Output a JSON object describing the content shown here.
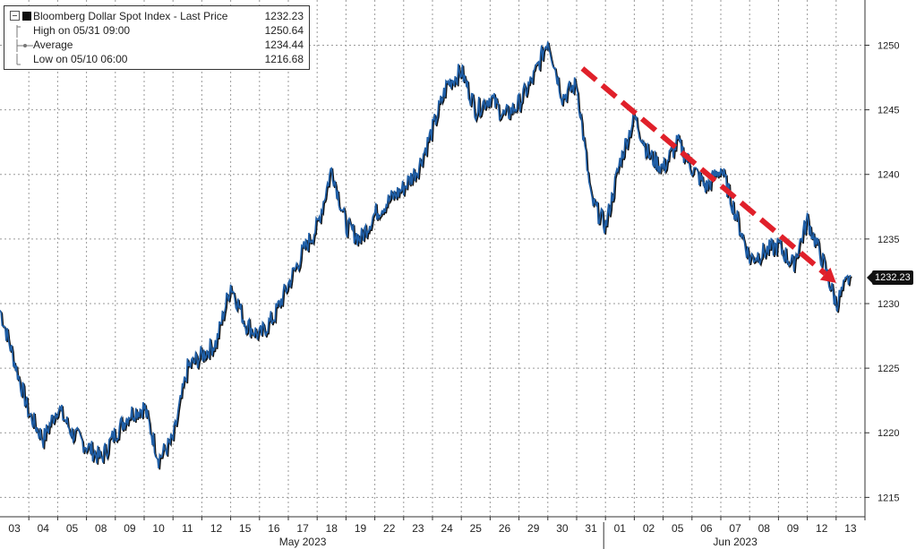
{
  "chart_data": {
    "type": "line",
    "legend": {
      "title": "Bloomberg Dollar Spot Index - Last Price",
      "last": "1232.23",
      "rows": [
        {
          "label": "High on 05/31 09:00",
          "value": "1250.64"
        },
        {
          "label": "Average",
          "value": "1234.44"
        },
        {
          "label": "Low on 05/10 06:00",
          "value": "1216.68"
        }
      ],
      "placement": "top-left"
    },
    "last_price_label": "1232.23",
    "ylim": [
      1213.5,
      1253.5
    ],
    "yticks": [
      1215,
      1220,
      1225,
      1230,
      1235,
      1240,
      1245,
      1250
    ],
    "x_dates": [
      "03",
      "04",
      "05",
      "08",
      "09",
      "10",
      "11",
      "12",
      "15",
      "16",
      "17",
      "18",
      "19",
      "22",
      "23",
      "24",
      "25",
      "26",
      "29",
      "30",
      "31",
      "01",
      "02",
      "05",
      "06",
      "07",
      "08",
      "09",
      "12",
      "13"
    ],
    "months": [
      {
        "label": "May 2023",
        "start": 0,
        "end": 20
      },
      {
        "label": "Jun 2023",
        "start": 21,
        "end": 29
      }
    ],
    "grid": true,
    "series": [
      {
        "color": "#1f5fa8",
        "x": [
          0,
          0.5,
          1,
          1.5,
          2,
          2.5,
          3,
          3.5,
          4,
          4.5,
          5,
          5.5,
          6,
          6.5,
          7,
          7.5,
          8,
          8.5,
          9,
          9.5,
          10,
          10.5,
          11,
          11.5,
          12,
          12.5,
          13,
          13.5,
          14,
          14.5,
          15,
          15.5,
          16,
          16.5,
          17,
          17.5,
          18,
          18.5,
          19,
          19.5,
          20,
          20.5,
          21,
          21.5,
          22,
          22.5,
          23,
          23.5,
          24,
          24.5,
          25,
          25.5,
          26,
          26.5,
          27,
          27.5,
          28,
          28.5,
          29,
          29.5
        ],
        "values": [
          1229.5,
          1225.5,
          1221.5,
          1219.5,
          1222,
          1220,
          1219,
          1218,
          1220,
          1221.5,
          1222,
          1218,
          1219.5,
          1225,
          1226,
          1227,
          1231.5,
          1228.5,
          1227.5,
          1229,
          1231.5,
          1234,
          1236,
          1240.5,
          1236,
          1235,
          1237,
          1238,
          1239,
          1240.5,
          1243.5,
          1247,
          1248,
          1245,
          1246,
          1244.5,
          1245.5,
          1247.5,
          1250.5,
          1246,
          1247,
          1238,
          1236,
          1241,
          1244.5,
          1241.5,
          1240.5,
          1242.5,
          1240.5,
          1239,
          1240.5,
          1237,
          1233.5,
          1234,
          1234.5,
          1233,
          1236.5,
          1233.5,
          1230,
          1232.2
        ]
      }
    ],
    "annotations": [
      {
        "type": "arrow",
        "color": "#e0202a",
        "from": {
          "x": 20.2,
          "y": 1248.2
        },
        "to": {
          "x": 29.0,
          "y": 1231.6
        }
      }
    ]
  }
}
